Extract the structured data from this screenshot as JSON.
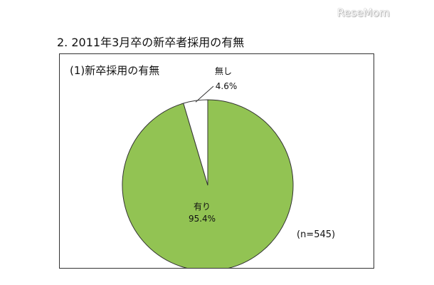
{
  "watermark": "ReseMom",
  "section_title": "2. 2011年3月卒の新卒者採用の有無",
  "chart_data": {
    "type": "pie",
    "title": "(1)新卒採用の有無",
    "note": "(n=545)",
    "slices": [
      {
        "name": "有り",
        "value": 95.4,
        "label": "95.4%",
        "color": "#92c353"
      },
      {
        "name": "無し",
        "value": 4.6,
        "label": "4.6%",
        "color": "#ffffff"
      }
    ]
  }
}
